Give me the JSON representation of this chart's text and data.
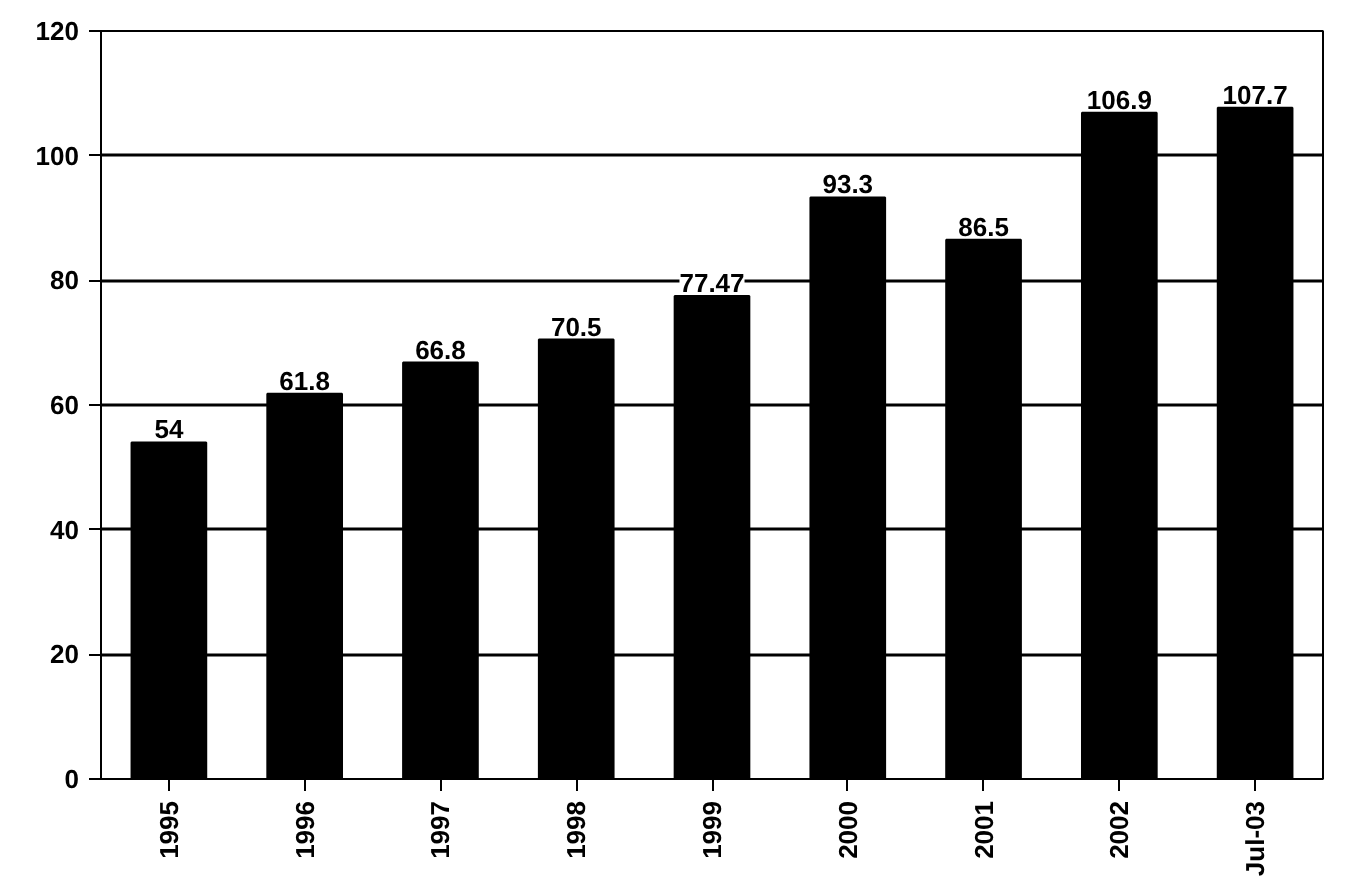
{
  "chart_data": {
    "type": "bar",
    "categories": [
      "1995",
      "1996",
      "1997",
      "1998",
      "1999",
      "2000",
      "2001",
      "2002",
      "Jul-03"
    ],
    "values": [
      54,
      61.8,
      66.8,
      70.5,
      77.47,
      93.3,
      86.5,
      106.9,
      107.7
    ],
    "value_labels": [
      "54",
      "61.8",
      "66.8",
      "70.5",
      "77.47",
      "93.3",
      "86.5",
      "106.9",
      "107.7"
    ],
    "color": "#000000",
    "ylim": [
      0,
      120
    ],
    "yticks": [
      0,
      20,
      40,
      60,
      80,
      100,
      120
    ],
    "grid": "y"
  }
}
